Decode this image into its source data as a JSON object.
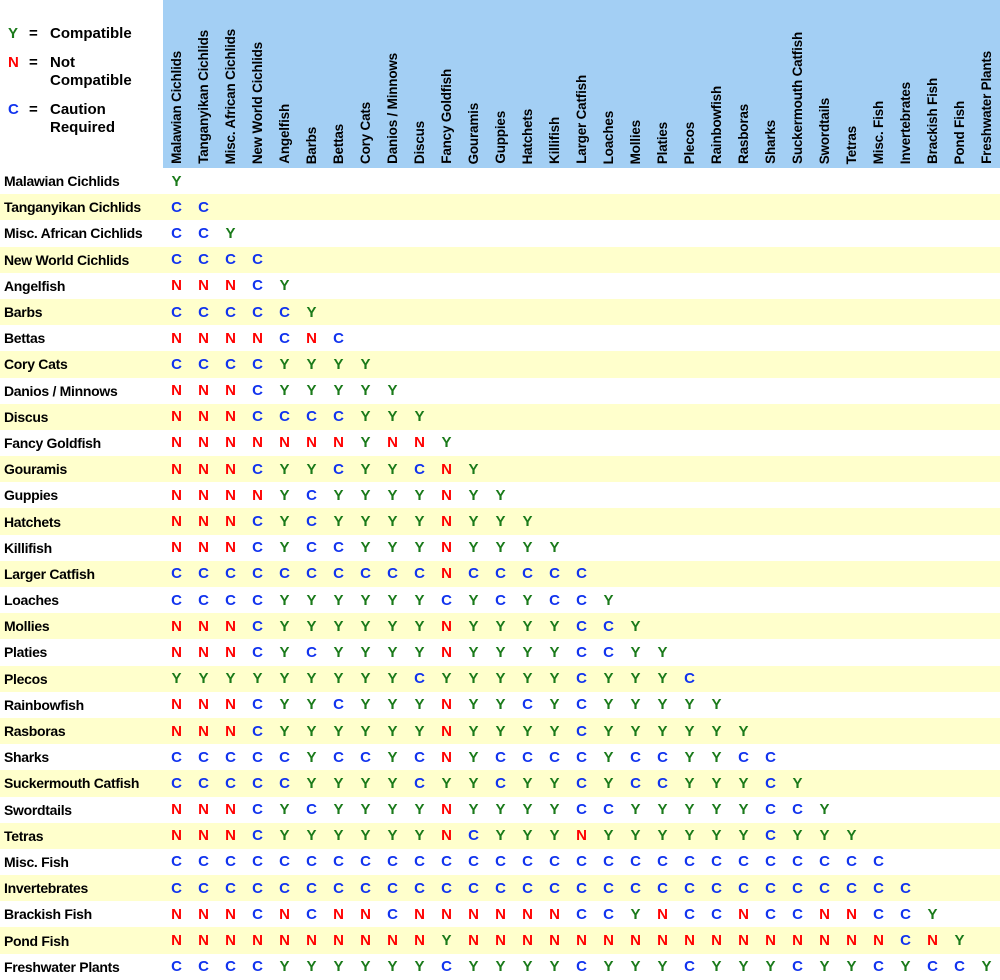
{
  "colors": {
    "background": "#FFFFFF",
    "header_bg": "#A3CFF4",
    "row_stripe": "#FFFFCC",
    "label_text": "#000000",
    "symbols": {
      "Y": "#1A7A1A",
      "N": "#FF0000",
      "C": "#1133EE"
    }
  },
  "legend": {
    "equals": "=",
    "items": [
      {
        "symbol": "Y",
        "meaning": "Compatible",
        "color": "#1A7A1A"
      },
      {
        "symbol": "N",
        "meaning": "Not Compatible",
        "color": "#FF0000"
      },
      {
        "symbol": "C",
        "meaning": "Caution Required",
        "color": "#1133EE"
      }
    ]
  },
  "chart_data": {
    "type": "heatmap",
    "value_legend": {
      "Y": "Compatible",
      "N": "Not Compatible",
      "C": "Caution Required"
    },
    "categories": [
      "Malawian Cichlids",
      "Tanganyikan Cichlids",
      "Misc. African Cichlids",
      "New World Cichlids",
      "Angelfish",
      "Barbs",
      "Bettas",
      "Cory Cats",
      "Danios / Minnows",
      "Discus",
      "Fancy Goldfish",
      "Gouramis",
      "Guppies",
      "Hatchets",
      "Killifish",
      "Larger Catfish",
      "Loaches",
      "Mollies",
      "Platies",
      "Plecos",
      "Rainbowfish",
      "Rasboras",
      "Sharks",
      "Suckermouth Catfish",
      "Swordtails",
      "Tetras",
      "Misc. Fish",
      "Invertebrates",
      "Brackish Fish",
      "Pond Fish",
      "Freshwater Plants"
    ],
    "matrix": [
      "Y",
      "CC",
      "CCY",
      "CCCC",
      "NNNCY",
      "CCCCCY",
      "NNNNCNC",
      "CCCCYYYY",
      "NNNCYYYYY",
      "NNNCCCCYYY",
      "NNNNNNNYNNY",
      "NNNCYYCYYCNY",
      "NNNNYCYYYYNYY",
      "NNNCYCYYYYNYYY",
      "NNNCYCCYYYNYYYY",
      "CCCCCCCCCCNCCCCC",
      "CCCCYYYYYYCYCYCCY",
      "NNNCYYYYYYNYYYYCCY",
      "NNNCYCYYYYNYYYYCCYY",
      "YYYYYYYYYCYYYYYCYYYC",
      "NNNCYYCYYYNYYCYCYYYYY",
      "NNNCYYYYYYNYYYYCYYYYYY",
      "CCCCCYCCYCNYCCCCYCCYYCC",
      "CCCCCYYYYCYYCYYCYCCYYYCY",
      "NNNCYCYYYYNYYYYCCYYYYYCCY",
      "NNNCYYYYYYNCYYYNYYYYYYCYYY",
      "CCCCCCCCCCCCCCCCCCCCCCCCCCC",
      "CCCCCCCCCCCCCCCCCCCCCCCCCCCC",
      "NNNCNCNNCNNNNNNCCYNCCNCCNNCCY",
      "NNNNNNNNNNYNNNNNNNNNNNNNNNNCNY",
      "CCCCYYYYYYCYYYYCYYYCYYYCYYCYCCY"
    ],
    "layout": {
      "triangular": true,
      "legend_position": "top-left",
      "column_headers": "rotated-90",
      "row_stripes": true
    }
  }
}
